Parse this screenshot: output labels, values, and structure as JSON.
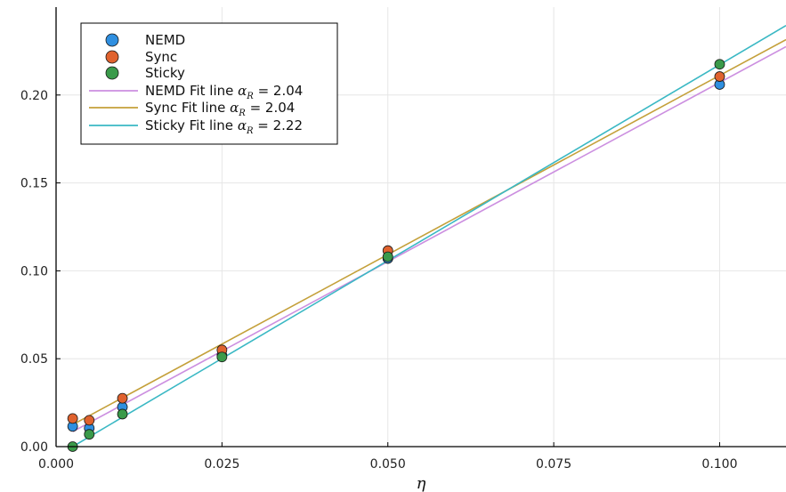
{
  "chart_data": {
    "type": "scatter",
    "xlabel": "η",
    "ylabel": "",
    "xlim": [
      0.0,
      0.11
    ],
    "ylim": [
      0.0,
      0.25
    ],
    "x_ticks": [
      0.0,
      0.025,
      0.05,
      0.075,
      0.1
    ],
    "x_tick_labels": [
      "0.000",
      "0.025",
      "0.050",
      "0.075",
      "0.100"
    ],
    "y_ticks": [
      0.0,
      0.05,
      0.1,
      0.15,
      0.2
    ],
    "y_tick_labels": [
      "0.00",
      "0.05",
      "0.10",
      "0.15",
      "0.20"
    ],
    "grid": true,
    "legend_position": "top-left",
    "series": [
      {
        "name": "NEMD",
        "kind": "scatter",
        "color": "#2f8fe0",
        "x": [
          0.0025,
          0.005,
          0.01,
          0.025,
          0.05,
          0.1
        ],
        "y": [
          0.0115,
          0.0105,
          0.0225,
          0.052,
          0.107,
          0.206
        ]
      },
      {
        "name": "Sync",
        "kind": "scatter",
        "color": "#e0622e",
        "x": [
          0.0025,
          0.005,
          0.01,
          0.025,
          0.05,
          0.1
        ],
        "y": [
          0.016,
          0.015,
          0.0275,
          0.055,
          0.1115,
          0.2105
        ]
      },
      {
        "name": "Sticky",
        "kind": "scatter",
        "color": "#3a9a4a",
        "x": [
          0.0025,
          0.005,
          0.01,
          0.025,
          0.05,
          0.1
        ],
        "y": [
          0.0,
          0.007,
          0.0185,
          0.051,
          0.108,
          0.2175
        ]
      },
      {
        "name": "NEMD Fit line",
        "label_suffix": "= 2.04",
        "kind": "line",
        "color": "#cc8fe0",
        "x": [
          0.0025,
          0.11
        ],
        "y": [
          0.0085,
          0.2275
        ]
      },
      {
        "name": "Sync Fit line",
        "label_suffix": "= 2.04",
        "kind": "line",
        "color": "#c4a03a",
        "x": [
          0.0025,
          0.11
        ],
        "y": [
          0.0125,
          0.2315
        ]
      },
      {
        "name": "Sticky Fit line",
        "label_suffix": "= 2.22",
        "kind": "line",
        "color": "#3ab8c4",
        "x": [
          0.0025,
          0.11
        ],
        "y": [
          0.0,
          0.2395
        ]
      }
    ]
  }
}
